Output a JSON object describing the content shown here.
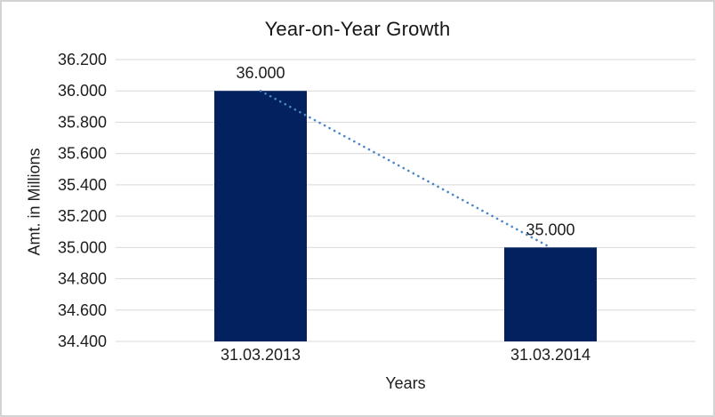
{
  "frame": {
    "background": "#ffffff",
    "border_color": "#d3d3d3"
  },
  "chart_data": {
    "type": "bar",
    "title": "Year-on-Year Growth",
    "xlabel": "Years",
    "ylabel": "Amt. in Millions",
    "categories": [
      "31.03.2013",
      "31.03.2014"
    ],
    "values": [
      36.0,
      35.0
    ],
    "data_labels": [
      "36.000",
      "35.000"
    ],
    "ylim": [
      34.4,
      36.2
    ],
    "ytick_step": 0.2,
    "ytick_labels": [
      "36.200",
      "36.000",
      "35.800",
      "35.600",
      "35.400",
      "35.200",
      "35.000",
      "34.800",
      "34.600",
      "34.400"
    ],
    "grid": true,
    "legend": "none",
    "trendline": {
      "style": "dotted",
      "points": [
        [
          0,
          36.0
        ],
        [
          1,
          35.0
        ]
      ]
    },
    "colors": {
      "bar": "#02215e",
      "trendline": "#4a86c8",
      "gridline": "#d9d9d9",
      "text": "#1d1d1d",
      "title_text": "#161616"
    }
  }
}
